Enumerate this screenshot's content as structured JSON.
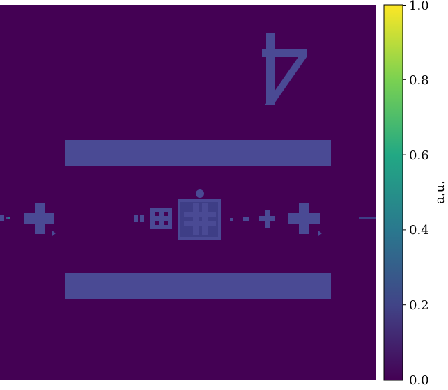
{
  "figure": {
    "colormap": "viridis",
    "background_color": "#440154",
    "feature_color": "#4a4a94"
  },
  "colorbar": {
    "label": "a.u.",
    "min": 0.0,
    "max": 1.0,
    "ticks": [
      "0.0",
      "0.2",
      "0.4",
      "0.6",
      "0.8",
      "1.0"
    ],
    "gradient_stops": [
      "#440154",
      "#414487",
      "#2a788e",
      "#22a884",
      "#7ad151",
      "#fde725"
    ]
  }
}
